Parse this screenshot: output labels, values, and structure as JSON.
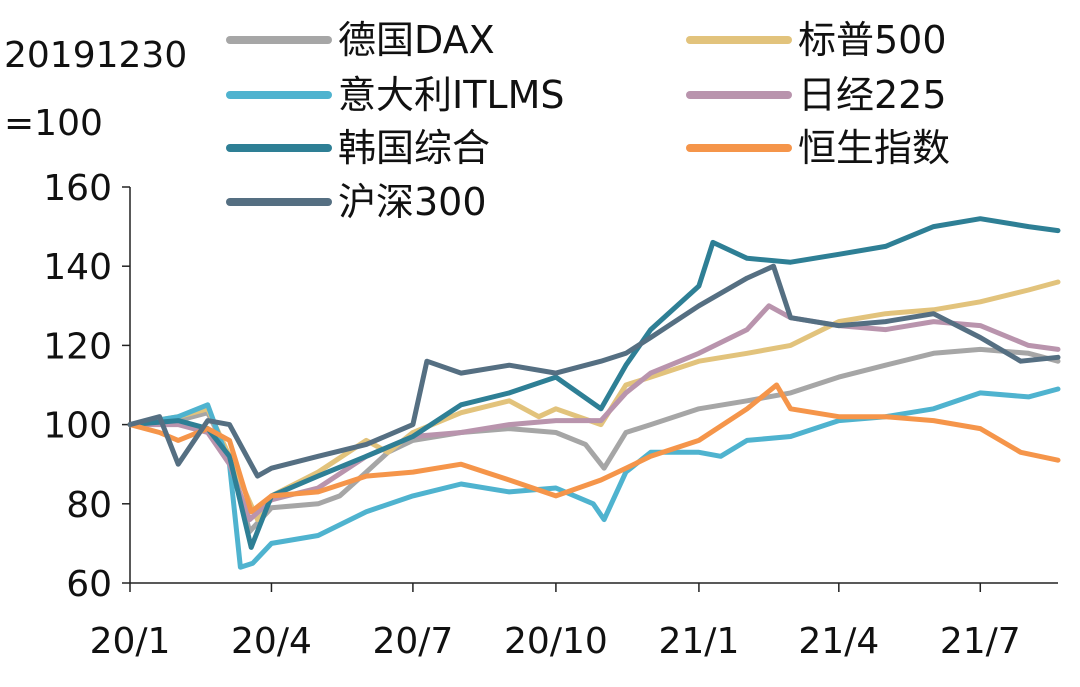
{
  "chart_data": {
    "type": "line",
    "unit_label": [
      "20191230",
      "=100"
    ],
    "y_ticks": [
      "60",
      "80",
      "100",
      "120",
      "140",
      "160"
    ],
    "ylim": [
      60,
      160
    ],
    "x_ticks": [
      "20/1",
      "20/4",
      "20/7",
      "20/10",
      "21/1",
      "21/4",
      "21/7"
    ],
    "x_tick_dates": [
      "2020-01",
      "2020-04",
      "2020-07",
      "2020-10",
      "2021-01",
      "2021-04",
      "2021-07"
    ],
    "xlim": [
      "2020-01",
      "2021-08-20"
    ],
    "grid": false,
    "legend": "top, two columns",
    "series": [
      {
        "name": "德国DAX",
        "color": "#a6a6a6",
        "points": [
          [
            "2020-01",
            100
          ],
          [
            "2020-02",
            101
          ],
          [
            "2020-02-20",
            103
          ],
          [
            "2020-03-05",
            92
          ],
          [
            "2020-03-18",
            73
          ],
          [
            "2020-04",
            79
          ],
          [
            "2020-05",
            80
          ],
          [
            "2020-05-15",
            82
          ],
          [
            "2020-06",
            88
          ],
          [
            "2020-06-15",
            93
          ],
          [
            "2020-07",
            96
          ],
          [
            "2020-08",
            98
          ],
          [
            "2020-09",
            99
          ],
          [
            "2020-10",
            98
          ],
          [
            "2020-10-20",
            95
          ],
          [
            "2020-11",
            89
          ],
          [
            "2020-11-15",
            98
          ],
          [
            "2020-12",
            100
          ],
          [
            "2021-01",
            104
          ],
          [
            "2021-02",
            106
          ],
          [
            "2021-03",
            108
          ],
          [
            "2021-04",
            112
          ],
          [
            "2021-05",
            115
          ],
          [
            "2021-06",
            118
          ],
          [
            "2021-07",
            119
          ],
          [
            "2021-08",
            118
          ],
          [
            "2021-08-20",
            116
          ]
        ]
      },
      {
        "name": "标普500",
        "color": "#e2c37c",
        "points": [
          [
            "2020-01",
            100
          ],
          [
            "2020-02",
            102
          ],
          [
            "2020-02-20",
            104
          ],
          [
            "2020-03-05",
            92
          ],
          [
            "2020-03-23",
            76
          ],
          [
            "2020-04",
            82
          ],
          [
            "2020-05",
            88
          ],
          [
            "2020-06",
            96
          ],
          [
            "2020-06-15",
            93
          ],
          [
            "2020-07",
            98
          ],
          [
            "2020-08",
            103
          ],
          [
            "2020-09",
            106
          ],
          [
            "2020-09-20",
            102
          ],
          [
            "2020-10",
            104
          ],
          [
            "2020-10-30",
            100
          ],
          [
            "2020-11-15",
            110
          ],
          [
            "2020-12",
            112
          ],
          [
            "2021-01",
            116
          ],
          [
            "2021-02",
            118
          ],
          [
            "2021-03",
            120
          ],
          [
            "2021-04",
            126
          ],
          [
            "2021-05",
            128
          ],
          [
            "2021-06",
            129
          ],
          [
            "2021-07",
            131
          ],
          [
            "2021-08",
            134
          ],
          [
            "2021-08-20",
            136
          ]
        ]
      },
      {
        "name": "意大利ITLMS",
        "color": "#4fb3cf",
        "points": [
          [
            "2020-01",
            100
          ],
          [
            "2020-02",
            102
          ],
          [
            "2020-02-20",
            105
          ],
          [
            "2020-03-05",
            90
          ],
          [
            "2020-03-12",
            64
          ],
          [
            "2020-03-20",
            65
          ],
          [
            "2020-04",
            70
          ],
          [
            "2020-05",
            72
          ],
          [
            "2020-06",
            78
          ],
          [
            "2020-07",
            82
          ],
          [
            "2020-08",
            85
          ],
          [
            "2020-09",
            83
          ],
          [
            "2020-10",
            84
          ],
          [
            "2020-10-25",
            80
          ],
          [
            "2020-11",
            76
          ],
          [
            "2020-11-15",
            88
          ],
          [
            "2020-12",
            93
          ],
          [
            "2021-01",
            93
          ],
          [
            "2021-01-15",
            92
          ],
          [
            "2021-02",
            96
          ],
          [
            "2021-03",
            97
          ],
          [
            "2021-04",
            101
          ],
          [
            "2021-05",
            102
          ],
          [
            "2021-06",
            104
          ],
          [
            "2021-07",
            108
          ],
          [
            "2021-08",
            107
          ],
          [
            "2021-08-20",
            109
          ]
        ]
      },
      {
        "name": "日经225",
        "color": "#b994ad",
        "points": [
          [
            "2020-01",
            100
          ],
          [
            "2020-02",
            100
          ],
          [
            "2020-02-20",
            98
          ],
          [
            "2020-03-05",
            90
          ],
          [
            "2020-03-18",
            76
          ],
          [
            "2020-04",
            81
          ],
          [
            "2020-05",
            84
          ],
          [
            "2020-06",
            92
          ],
          [
            "2020-07",
            97
          ],
          [
            "2020-08",
            98
          ],
          [
            "2020-09",
            100
          ],
          [
            "2020-10",
            101
          ],
          [
            "2020-10-30",
            101
          ],
          [
            "2020-11-15",
            108
          ],
          [
            "2020-12",
            113
          ],
          [
            "2021-01",
            118
          ],
          [
            "2021-02",
            124
          ],
          [
            "2021-02-15",
            130
          ],
          [
            "2021-03",
            127
          ],
          [
            "2021-04",
            125
          ],
          [
            "2021-05",
            124
          ],
          [
            "2021-06",
            126
          ],
          [
            "2021-07",
            125
          ],
          [
            "2021-08",
            120
          ],
          [
            "2021-08-20",
            119
          ]
        ]
      },
      {
        "name": "韩国综合",
        "color": "#2e7f95",
        "points": [
          [
            "2020-01",
            100
          ],
          [
            "2020-02",
            101
          ],
          [
            "2020-02-20",
            99
          ],
          [
            "2020-03-05",
            92
          ],
          [
            "2020-03-19",
            69
          ],
          [
            "2020-04",
            82
          ],
          [
            "2020-05",
            87
          ],
          [
            "2020-06",
            92
          ],
          [
            "2020-07",
            97
          ],
          [
            "2020-08",
            105
          ],
          [
            "2020-09",
            108
          ],
          [
            "2020-10",
            112
          ],
          [
            "2020-10-30",
            104
          ],
          [
            "2020-11-15",
            115
          ],
          [
            "2020-12",
            124
          ],
          [
            "2021-01",
            135
          ],
          [
            "2021-01-10",
            146
          ],
          [
            "2021-02",
            142
          ],
          [
            "2021-03",
            141
          ],
          [
            "2021-04",
            143
          ],
          [
            "2021-05",
            145
          ],
          [
            "2021-06",
            150
          ],
          [
            "2021-07",
            152
          ],
          [
            "2021-08",
            150
          ],
          [
            "2021-08-20",
            149
          ]
        ]
      },
      {
        "name": "恒生指数",
        "color": "#f5954a",
        "points": [
          [
            "2020-01",
            100
          ],
          [
            "2020-01-20",
            98
          ],
          [
            "2020-02",
            96
          ],
          [
            "2020-02-20",
            99
          ],
          [
            "2020-03-05",
            96
          ],
          [
            "2020-03-19",
            78
          ],
          [
            "2020-04",
            82
          ],
          [
            "2020-05",
            83
          ],
          [
            "2020-06",
            87
          ],
          [
            "2020-07",
            88
          ],
          [
            "2020-08",
            90
          ],
          [
            "2020-09",
            86
          ],
          [
            "2020-10",
            82
          ],
          [
            "2020-10-30",
            86
          ],
          [
            "2020-11-15",
            89
          ],
          [
            "2020-12",
            92
          ],
          [
            "2021-01",
            96
          ],
          [
            "2021-02",
            104
          ],
          [
            "2021-02-20",
            110
          ],
          [
            "2021-03",
            104
          ],
          [
            "2021-04",
            102
          ],
          [
            "2021-05",
            102
          ],
          [
            "2021-06",
            101
          ],
          [
            "2021-07",
            99
          ],
          [
            "2021-07-27",
            93
          ],
          [
            "2021-08-20",
            91
          ]
        ]
      },
      {
        "name": "沪深300",
        "color": "#556f82",
        "points": [
          [
            "2020-01",
            100
          ],
          [
            "2020-01-20",
            102
          ],
          [
            "2020-02",
            90
          ],
          [
            "2020-02-20",
            101
          ],
          [
            "2020-03-05",
            100
          ],
          [
            "2020-03-23",
            87
          ],
          [
            "2020-04",
            89
          ],
          [
            "2020-05",
            92
          ],
          [
            "2020-06",
            95
          ],
          [
            "2020-07",
            100
          ],
          [
            "2020-07-10",
            116
          ],
          [
            "2020-08",
            113
          ],
          [
            "2020-09",
            115
          ],
          [
            "2020-10",
            113
          ],
          [
            "2020-10-30",
            116
          ],
          [
            "2020-11-15",
            118
          ],
          [
            "2020-12",
            122
          ],
          [
            "2021-01",
            130
          ],
          [
            "2021-02",
            137
          ],
          [
            "2021-02-18",
            140
          ],
          [
            "2021-03",
            127
          ],
          [
            "2021-04",
            125
          ],
          [
            "2021-05",
            126
          ],
          [
            "2021-06",
            128
          ],
          [
            "2021-07",
            122
          ],
          [
            "2021-07-27",
            116
          ],
          [
            "2021-08-20",
            117
          ]
        ]
      }
    ]
  }
}
